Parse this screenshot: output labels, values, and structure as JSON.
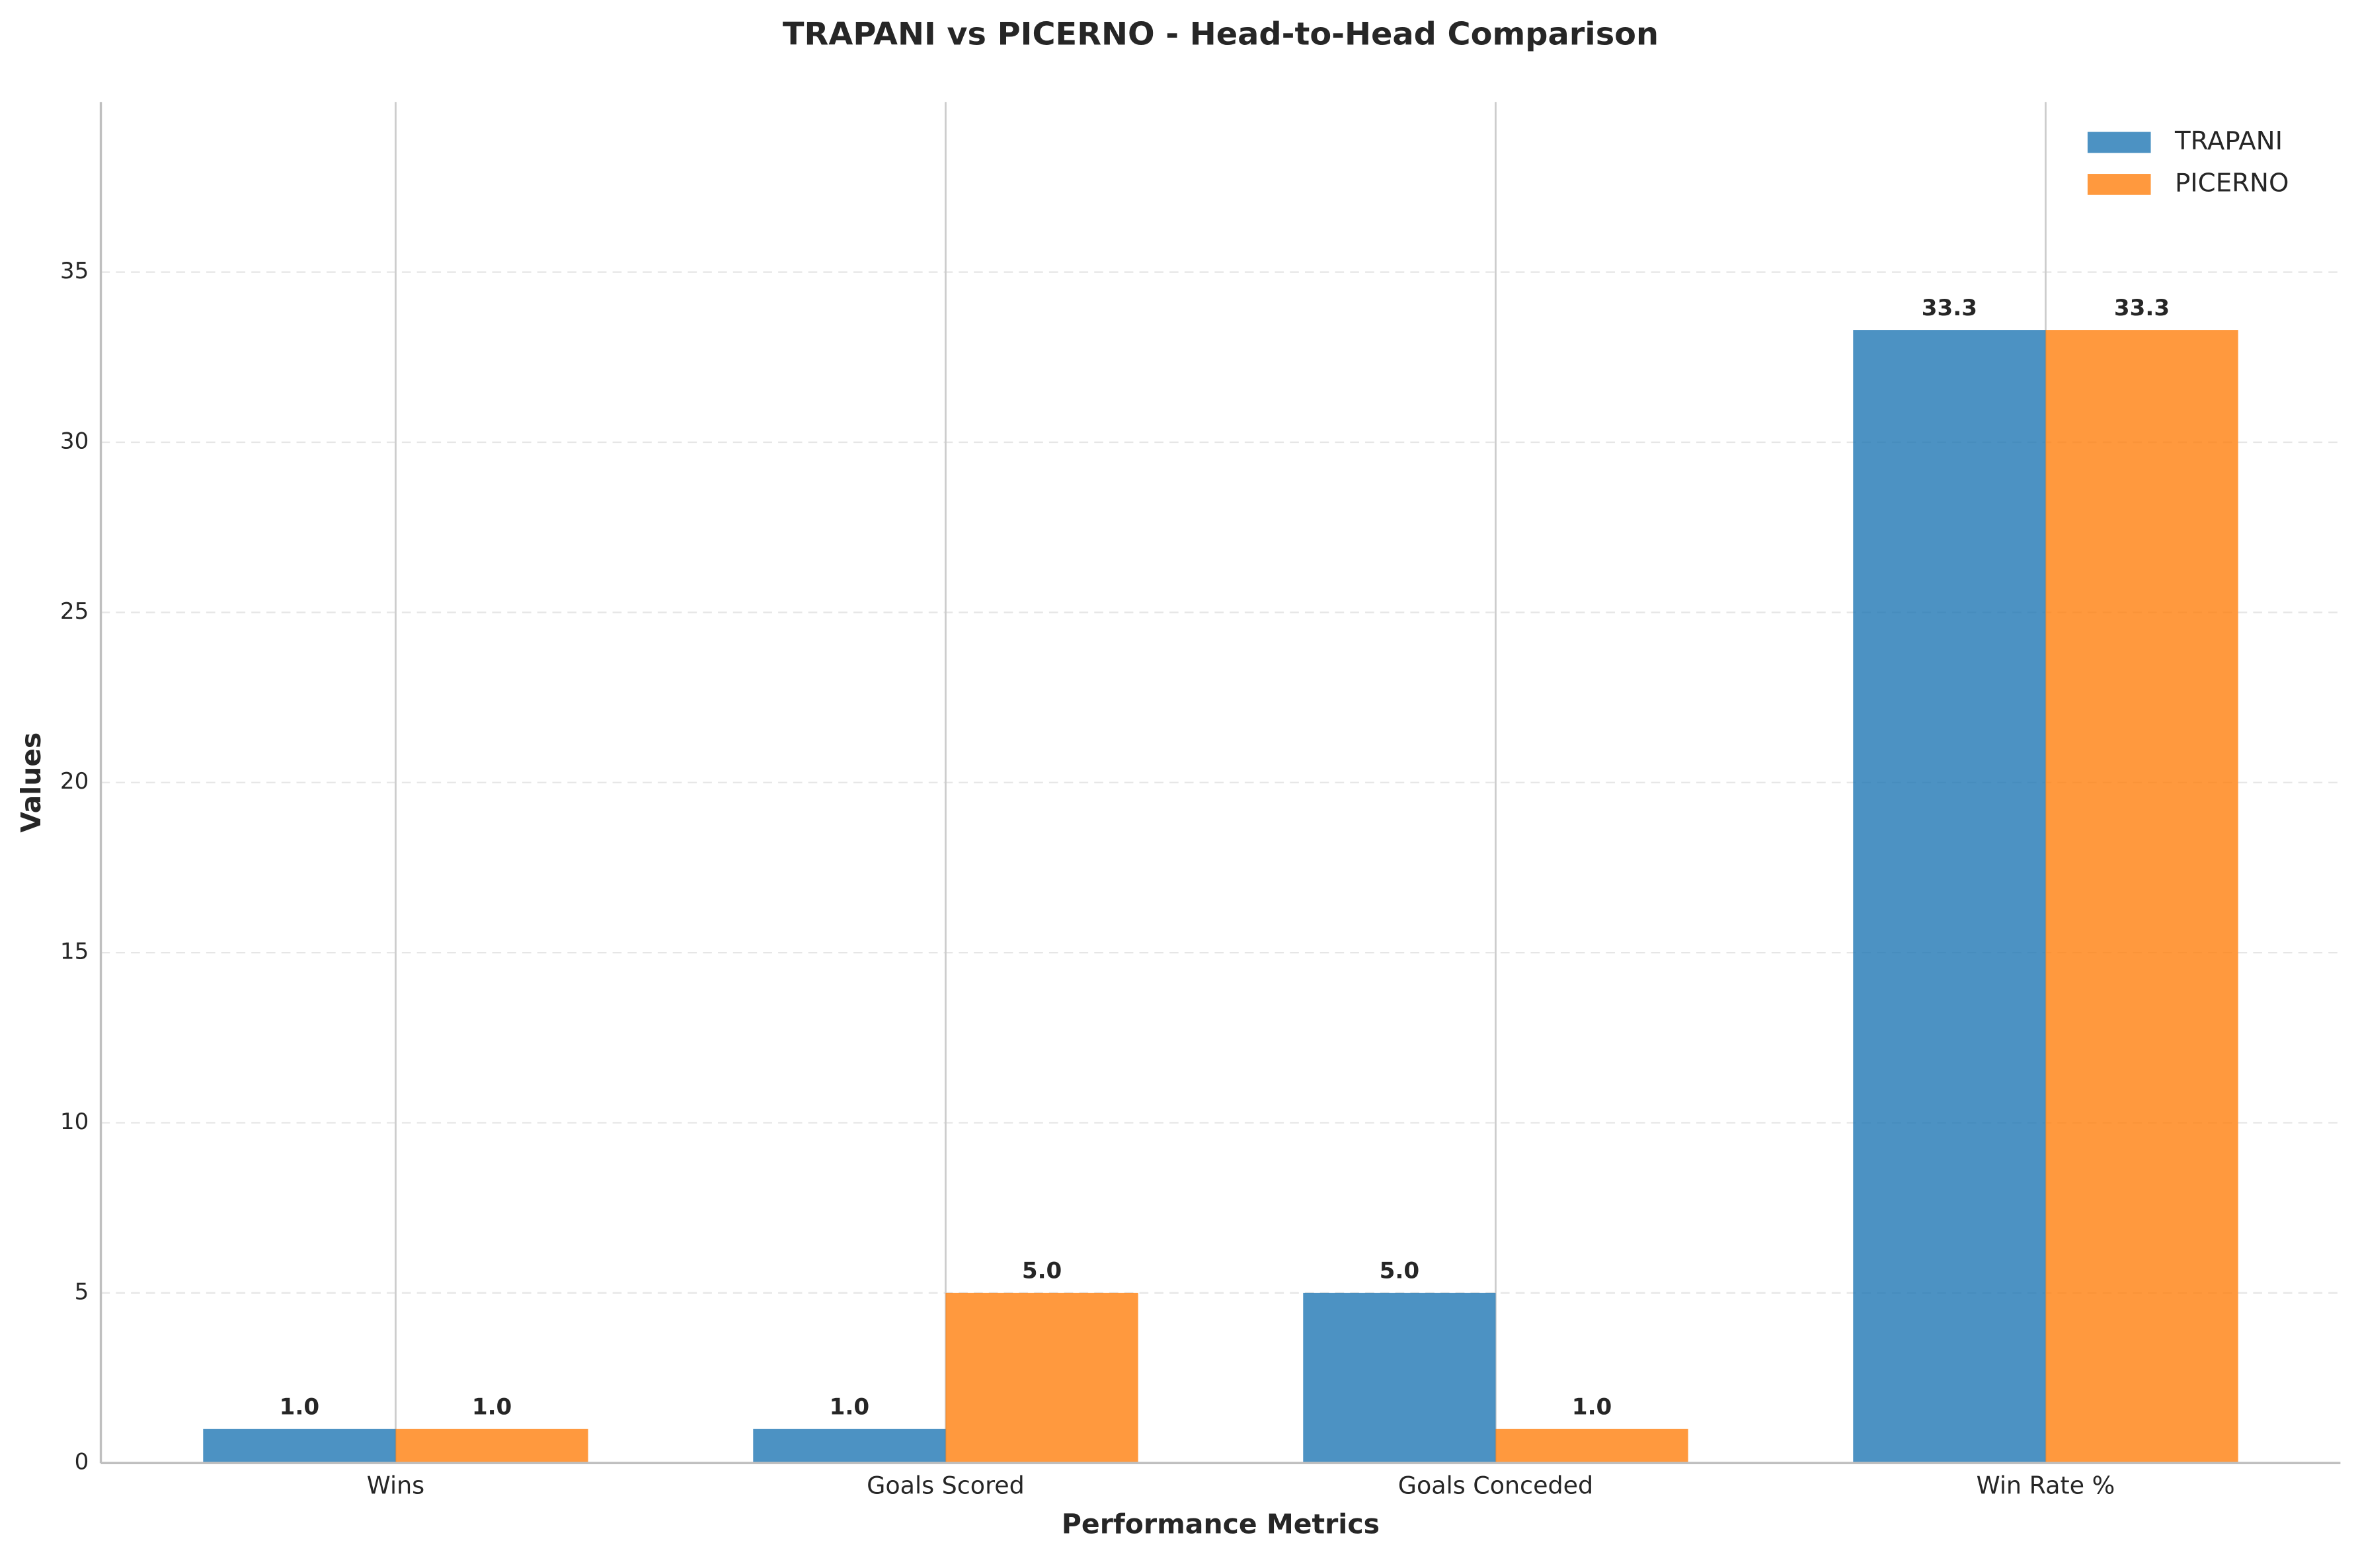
{
  "chart_data": {
    "type": "bar",
    "title": "TRAPANI vs PICERNO - Head-to-Head Comparison",
    "x_label": "Performance Metrics",
    "y_label": "Values",
    "categories": [
      "Wins",
      "Goals Scored",
      "Goals Conceded",
      "Win Rate %"
    ],
    "series": [
      {
        "name": "TRAPANI",
        "color": "#1f77b4",
        "values": [
          1,
          1,
          5,
          33.3
        ],
        "value_labels": [
          "1.0",
          "1.0",
          "5.0",
          "33.3"
        ]
      },
      {
        "name": "PICERNO",
        "color": "#ff7f0e",
        "values": [
          1,
          5,
          1,
          33.3
        ],
        "value_labels": [
          "1.0",
          "5.0",
          "1.0",
          "33.3"
        ]
      }
    ],
    "ylim": [
      0,
      40
    ],
    "yticks": [
      0,
      5,
      10,
      15,
      20,
      25,
      30,
      35
    ],
    "grid": true,
    "legend": "upper right"
  }
}
